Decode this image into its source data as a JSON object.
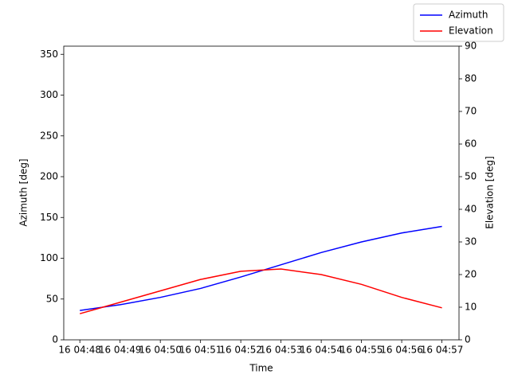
{
  "chart_data": {
    "type": "line",
    "x": [
      "16 04:48",
      "16 04:49",
      "16 04:50",
      "16 04:51",
      "16 04:52",
      "16 04:53",
      "16 04:54",
      "16 04:55",
      "16 04:56",
      "16 04:57"
    ],
    "series": [
      {
        "name": "Azimuth",
        "color": "#0000ff",
        "values": [
          36,
          43,
          52,
          63,
          77,
          92,
          107,
          120,
          131,
          139
        ]
      },
      {
        "name": "Elevation",
        "color": "#ff0000",
        "axis": "y2",
        "values": [
          8,
          11.5,
          15,
          18.5,
          21,
          21.7,
          20,
          17,
          13,
          9.8
        ]
      }
    ],
    "xlabel": "Time",
    "ylabel": "Azimuth [deg]",
    "y2label": "Elevation [deg]",
    "ylim": [
      0,
      360
    ],
    "yticks": [
      0,
      50,
      100,
      150,
      200,
      250,
      300,
      350
    ],
    "y2lim": [
      0,
      90
    ],
    "y2ticks": [
      0,
      10,
      20,
      30,
      40,
      50,
      60,
      70,
      80,
      90
    ],
    "legend": "upper right"
  }
}
